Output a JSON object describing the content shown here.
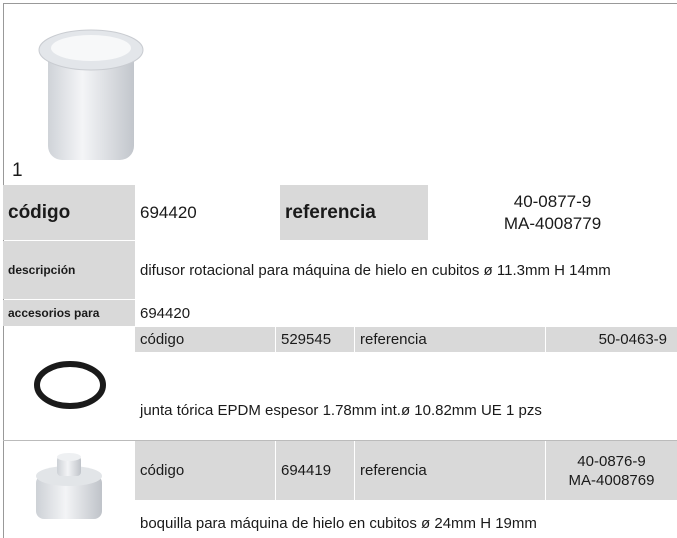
{
  "product": {
    "image_number": "1",
    "code_label": "código",
    "code": "694420",
    "reference_label": "referencia",
    "reference": [
      "40-0877-9",
      "MA-4008779"
    ],
    "description_label": "descripción",
    "description": "difusor rotacional  para máquina de hielo en cubitos ø 11.3mm H 14mm",
    "accessories_label": "accesorios para",
    "accessories_for": "694420"
  },
  "accessories": [
    {
      "code_label": "código",
      "code": "529545",
      "reference_label": "referencia",
      "reference": [
        "50-0463-9"
      ],
      "description": "junta tórica  EPDM espesor  1.78mm int.ø 10.82mm UE 1 pzs"
    },
    {
      "code_label": "código",
      "code": "694419",
      "reference_label": "referencia",
      "reference": [
        "40-0876-9",
        "MA-4008769"
      ],
      "description": "boquilla  para máquina de hielo en cubitos ø 24mm H 19mm"
    }
  ]
}
